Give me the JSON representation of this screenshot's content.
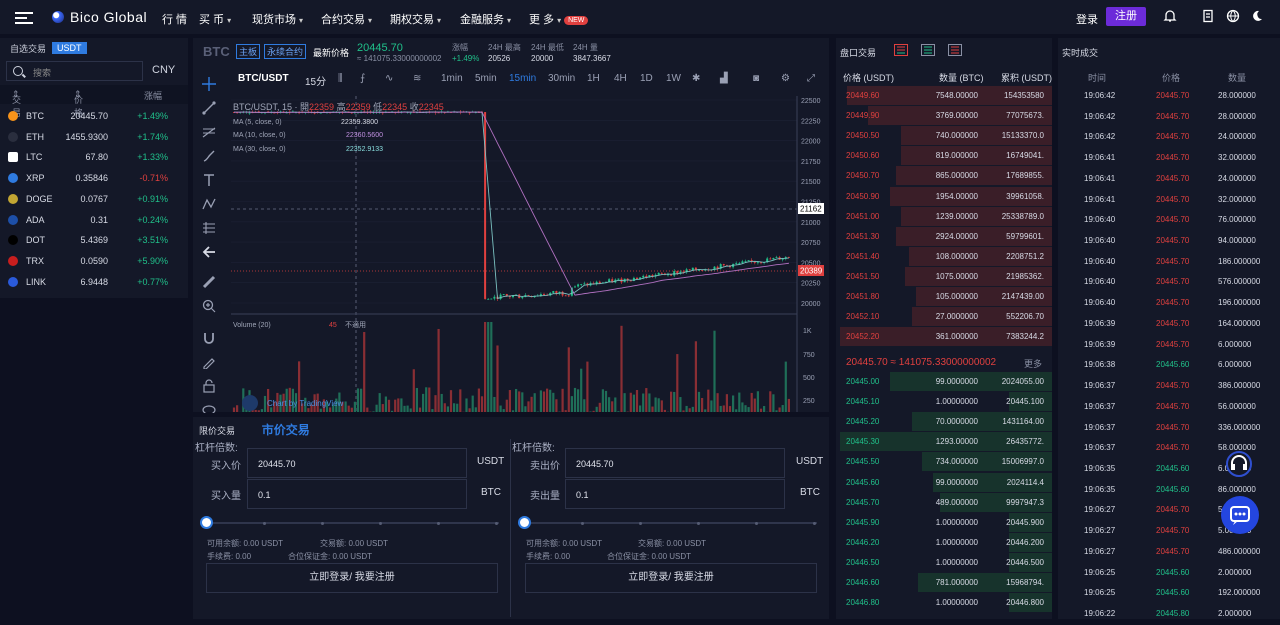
{
  "nav": {
    "brand": "Bico Global",
    "items": [
      {
        "label": "行 情",
        "caret": false
      },
      {
        "label": "买 币",
        "caret": true
      },
      {
        "label": "现货市场",
        "caret": true
      },
      {
        "label": "合约交易",
        "caret": true
      },
      {
        "label": "期权交易",
        "caret": true
      },
      {
        "label": "金融服务",
        "caret": true
      },
      {
        "label": "更 多",
        "caret": true
      }
    ],
    "new_badge": "NEW",
    "login": "登录",
    "register": "注册"
  },
  "markets": {
    "tab_fav": "自选交易",
    "tab_usdt": "USDT",
    "search_placeholder": "搜索",
    "currency": "CNY",
    "col_pair": "交易",
    "col_price": "价格",
    "col_change": "涨幅",
    "coins": [
      {
        "name": "BTC",
        "price": "20445.70",
        "change": "+1.49%",
        "color": "#f7931a",
        "dir": "up"
      },
      {
        "name": "ETH",
        "price": "1455.9300",
        "change": "+1.74%",
        "color": "#2a2e3e",
        "dir": "up"
      },
      {
        "name": "LTC",
        "price": "67.80",
        "change": "+1.33%",
        "color": "#ffffff",
        "dir": "up"
      },
      {
        "name": "XRP",
        "price": "0.35846",
        "change": "-0.71%",
        "color": "#2f7be0",
        "dir": "dn"
      },
      {
        "name": "DOGE",
        "price": "0.0767",
        "change": "+0.91%",
        "color": "#c2a633",
        "dir": "up"
      },
      {
        "name": "ADA",
        "price": "0.31",
        "change": "+0.24%",
        "color": "#1d4fa8",
        "dir": "up"
      },
      {
        "name": "DOT",
        "price": "5.4369",
        "change": "+3.51%",
        "color": "#000000",
        "dir": "up"
      },
      {
        "name": "TRX",
        "price": "0.0590",
        "change": "+5.90%",
        "color": "#c81e1e",
        "dir": "up"
      },
      {
        "name": "LINK",
        "price": "6.9448",
        "change": "+0.77%",
        "color": "#2a5ada",
        "dir": "up"
      }
    ]
  },
  "ticker": {
    "symbol": "BTC",
    "tag_main": "主板",
    "tag_perp": "永续合约",
    "latest_label": "最新价格",
    "latest": "20445.70",
    "cny": "≈ 141075.33000000002",
    "change_label": "涨幅",
    "change": "+1.49%",
    "high_label": "24H 最高",
    "high": "20526",
    "low_label": "24H 最低",
    "low": "20000",
    "vol_label": "24H 量",
    "vol": "3847.3667"
  },
  "chart_toolbar": {
    "pair": "BTC/USDT",
    "interval": "15分",
    "intervals": [
      "1min",
      "5min",
      "15min",
      "30min",
      "1H",
      "4H",
      "1D",
      "1W"
    ],
    "active": "15min"
  },
  "chart_legend": {
    "title": "BTC/USDT, 15",
    "ohlc_open": "22359",
    "ohlc_high": "22359",
    "ohlc_low": "22345",
    "ohlc_close": "22345",
    "ma5": "MA (5, close, 0)",
    "ma5_val": "22359.3800",
    "ma10": "MA (10, close, 0)",
    "ma10_val": "22360.5600",
    "ma30": "MA (30, close, 0)",
    "ma30_val": "22352.9133",
    "volume": "Volume (20)",
    "volume_val": "45",
    "volume_na": "不適用",
    "watermark": "Chart by TradingView",
    "prefix_open": "開",
    "prefix_high": "高",
    "prefix_low": "低",
    "prefix_close": "收"
  },
  "chart_data": {
    "type": "candlestick",
    "symbol": "BTC/USDT",
    "interval": "15",
    "y_ticks": [
      "22500",
      "22250",
      "22000",
      "21750",
      "21500",
      "21250",
      "21000",
      "20750",
      "20500",
      "20250",
      "20000"
    ],
    "ylim": [
      20000,
      22500
    ],
    "crosshair_price": "21162",
    "last_price": "20389",
    "volume_ticks": [
      "1K",
      "750",
      "500",
      "250"
    ],
    "phases": [
      {
        "segment": "before-drop",
        "level": 22350
      },
      {
        "segment": "drop",
        "from": 22350,
        "to": 20050
      },
      {
        "segment": "recovery",
        "from": 20050,
        "to": 20420
      }
    ]
  },
  "order_form": {
    "tab_limit": "限价交易",
    "tab_market": "市价交易",
    "leverage_label": "杠杆倍数:",
    "buy_price_label": "买入价",
    "buy_price": "20445.70",
    "buy_qty_label": "买入量",
    "buy_qty": "0.1",
    "sell_price_label": "卖出价",
    "sell_price": "20445.70",
    "sell_qty_label": "卖出量",
    "sell_qty": "0.1",
    "unit_usdt": "USDT",
    "unit_btc": "BTC",
    "avail": "可用余额: 0.00 USDT",
    "amount": "交易额: 0.00 USDT",
    "fee": "手续费: 0.00",
    "margin": "合位保证金: 0.00 USDT",
    "login_btn": "立即登录/ 我要注册"
  },
  "orderbook": {
    "title": "盘口交易",
    "col_price": "价格 (USDT)",
    "col_amount": "数量 (BTC)",
    "col_total": "累积 (USDT)",
    "asks": [
      {
        "p": "20449.60",
        "a": "7548.00000",
        "t": "154353580",
        "w": 0.95
      },
      {
        "p": "20449.90",
        "a": "3769.00000",
        "t": "77075673.",
        "w": 0.85
      },
      {
        "p": "20450.50",
        "a": "740.000000",
        "t": "15133370.0",
        "w": 0.7
      },
      {
        "p": "20450.60",
        "a": "819.000000",
        "t": "16749041.",
        "w": 0.7
      },
      {
        "p": "20450.70",
        "a": "865.000000",
        "t": "17689855.",
        "w": 0.72
      },
      {
        "p": "20450.90",
        "a": "1954.00000",
        "t": "39961058.",
        "w": 0.75
      },
      {
        "p": "20451.00",
        "a": "1239.00000",
        "t": "25338789.0",
        "w": 0.7
      },
      {
        "p": "20451.30",
        "a": "2924.00000",
        "t": "59799601.",
        "w": 0.72
      },
      {
        "p": "20451.40",
        "a": "108.000000",
        "t": "2208751.2",
        "w": 0.66
      },
      {
        "p": "20451.50",
        "a": "1075.00000",
        "t": "21985362.",
        "w": 0.68
      },
      {
        "p": "20451.80",
        "a": "105.000000",
        "t": "2147439.00",
        "w": 0.63
      },
      {
        "p": "20452.10",
        "a": "27.0000000",
        "t": "552206.70",
        "w": 0.65
      },
      {
        "p": "20452.20",
        "a": "361.000000",
        "t": "7383244.2",
        "w": 0.98
      }
    ],
    "mid_price": "20445.70 ≈ 141075.33000000002",
    "more": "更多",
    "bids": [
      {
        "p": "20445.00",
        "a": "99.0000000",
        "t": "2024055.00",
        "w": 0.75
      },
      {
        "p": "20445.10",
        "a": "1.00000000",
        "t": "20445.100",
        "w": 0.2
      },
      {
        "p": "20445.20",
        "a": "70.0000000",
        "t": "1431164.00",
        "w": 0.65
      },
      {
        "p": "20445.30",
        "a": "1293.00000",
        "t": "26435772.",
        "w": 0.98
      },
      {
        "p": "20445.50",
        "a": "734.000000",
        "t": "15006997.0",
        "w": 0.6
      },
      {
        "p": "20445.60",
        "a": "99.0000000",
        "t": "2024114.4",
        "w": 0.55
      },
      {
        "p": "20445.70",
        "a": "489.000000",
        "t": "9997947.3",
        "w": 0.52
      },
      {
        "p": "20445.90",
        "a": "1.00000000",
        "t": "20445.900",
        "w": 0.2
      },
      {
        "p": "20446.20",
        "a": "1.00000000",
        "t": "20446.200",
        "w": 0.2
      },
      {
        "p": "20446.50",
        "a": "1.00000000",
        "t": "20446.500",
        "w": 0.2
      },
      {
        "p": "20446.60",
        "a": "781.000000",
        "t": "15968794.",
        "w": 0.62
      },
      {
        "p": "20446.80",
        "a": "1.00000000",
        "t": "20446.800",
        "w": 0.2
      }
    ]
  },
  "trades": {
    "title": "实时成交",
    "col_time": "时间",
    "col_price": "价格",
    "col_qty": "数量",
    "rows": [
      {
        "t": "19:06:42",
        "p": "20445.70",
        "q": "28.000000",
        "d": "dn"
      },
      {
        "t": "19:06:42",
        "p": "20445.70",
        "q": "28.000000",
        "d": "dn"
      },
      {
        "t": "19:06:42",
        "p": "20445.70",
        "q": "24.000000",
        "d": "dn"
      },
      {
        "t": "19:06:41",
        "p": "20445.70",
        "q": "32.000000",
        "d": "dn"
      },
      {
        "t": "19:06:41",
        "p": "20445.70",
        "q": "24.000000",
        "d": "dn"
      },
      {
        "t": "19:06:41",
        "p": "20445.70",
        "q": "32.000000",
        "d": "dn"
      },
      {
        "t": "19:06:40",
        "p": "20445.70",
        "q": "76.000000",
        "d": "dn"
      },
      {
        "t": "19:06:40",
        "p": "20445.70",
        "q": "94.000000",
        "d": "dn"
      },
      {
        "t": "19:06:40",
        "p": "20445.70",
        "q": "186.000000",
        "d": "dn"
      },
      {
        "t": "19:06:40",
        "p": "20445.70",
        "q": "576.000000",
        "d": "dn"
      },
      {
        "t": "19:06:40",
        "p": "20445.70",
        "q": "196.000000",
        "d": "dn"
      },
      {
        "t": "19:06:39",
        "p": "20445.70",
        "q": "164.000000",
        "d": "dn"
      },
      {
        "t": "19:06:39",
        "p": "20445.70",
        "q": "6.000000",
        "d": "dn"
      },
      {
        "t": "19:06:38",
        "p": "20445.60",
        "q": "6.000000",
        "d": "up"
      },
      {
        "t": "19:06:37",
        "p": "20445.70",
        "q": "386.000000",
        "d": "dn"
      },
      {
        "t": "19:06:37",
        "p": "20445.70",
        "q": "56.000000",
        "d": "dn"
      },
      {
        "t": "19:06:37",
        "p": "20445.70",
        "q": "336.000000",
        "d": "dn"
      },
      {
        "t": "19:06:37",
        "p": "20445.70",
        "q": "58.000000",
        "d": "dn"
      },
      {
        "t": "19:06:35",
        "p": "20445.60",
        "q": "6.000000",
        "d": "up"
      },
      {
        "t": "19:06:35",
        "p": "20445.60",
        "q": "86.000000",
        "d": "up"
      },
      {
        "t": "19:06:27",
        "p": "20445.70",
        "q": "5.000000",
        "d": "dn"
      },
      {
        "t": "19:06:27",
        "p": "20445.70",
        "q": "5.000000",
        "d": "dn"
      },
      {
        "t": "19:06:27",
        "p": "20445.70",
        "q": "486.000000",
        "d": "dn"
      },
      {
        "t": "19:06:25",
        "p": "20445.60",
        "q": "2.000000",
        "d": "up"
      },
      {
        "t": "19:06:25",
        "p": "20445.60",
        "q": "192.000000",
        "d": "up"
      },
      {
        "t": "19:06:22",
        "p": "20445.80",
        "q": "2.000000",
        "d": "up"
      }
    ]
  }
}
